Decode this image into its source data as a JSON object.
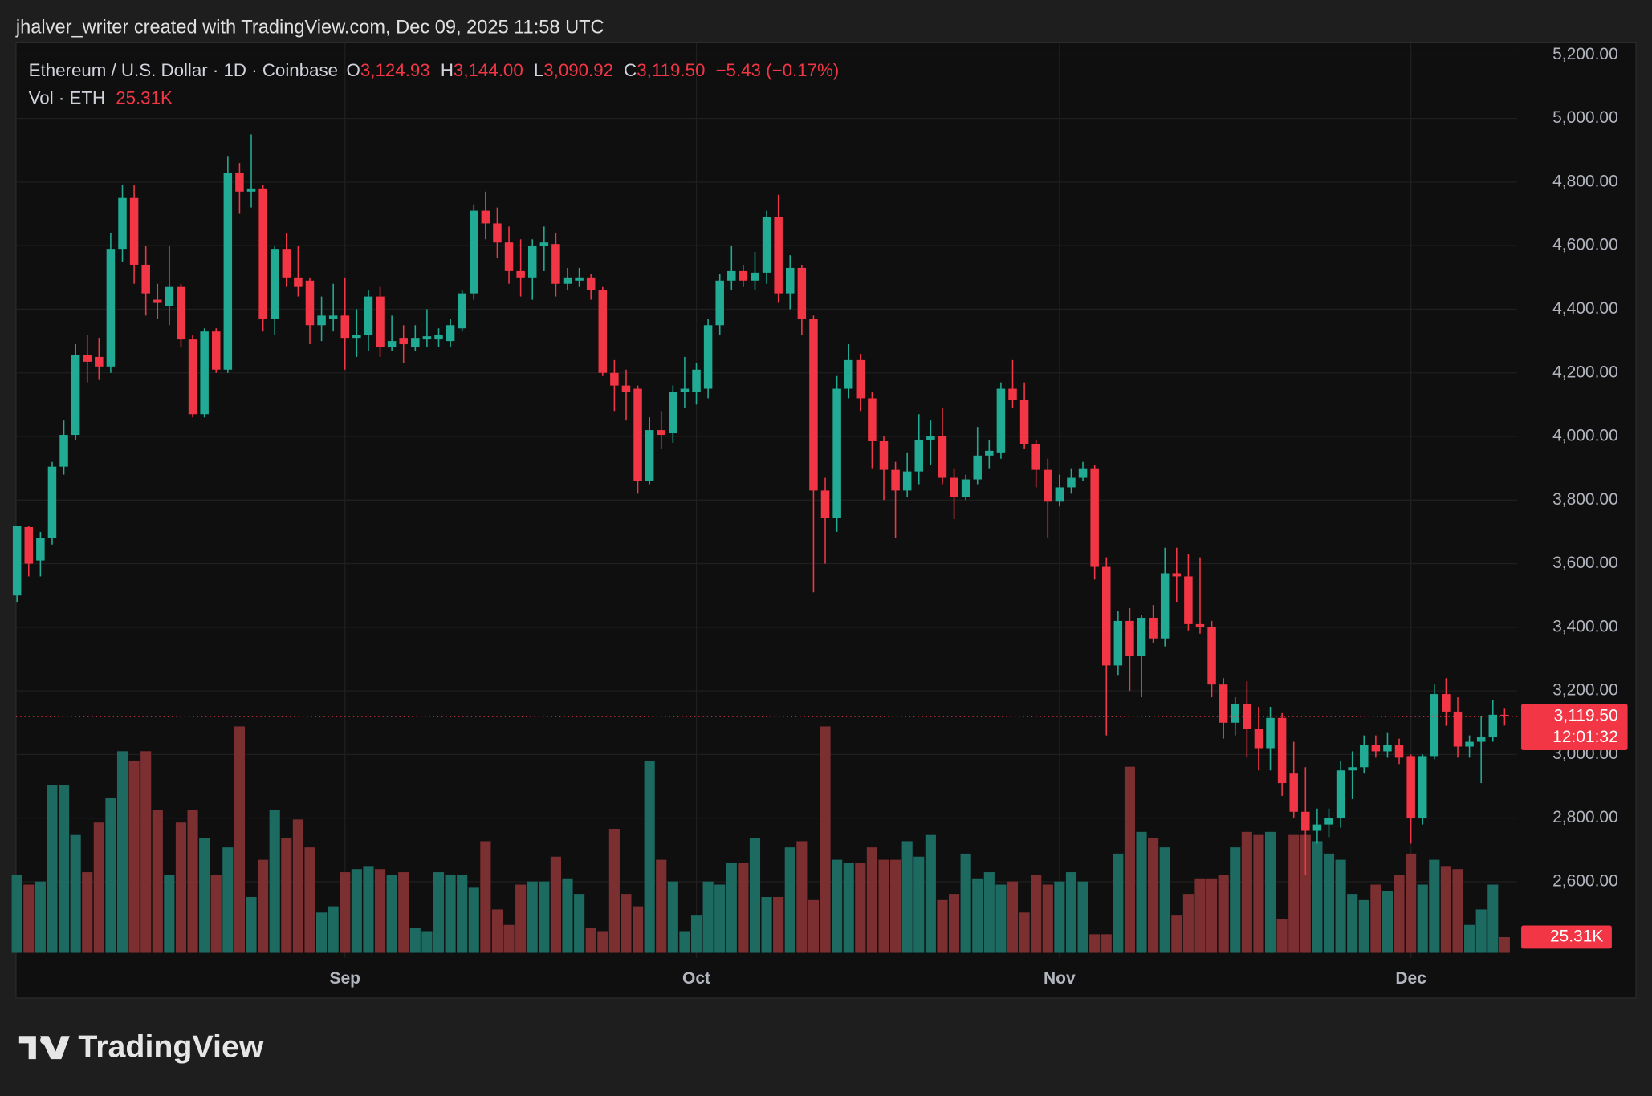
{
  "attribution": "jhalver_writer created with TradingView.com, Dec 09, 2025 11:58 UTC",
  "brand": "TradingView",
  "chart_data": {
    "type": "candlestick",
    "title": "Ethereum / U.S. Dollar · 1D · Coinbase",
    "ohlc_legend": [
      {
        "key": "O",
        "value": "3,124.93"
      },
      {
        "key": "H",
        "value": "3,144.00"
      },
      {
        "key": "L",
        "value": "3,090.92"
      },
      {
        "key": "C",
        "value": "3,119.50"
      }
    ],
    "change_label": "−5.43 (−0.17%)",
    "volume_title": "Vol · ETH",
    "volume_label": "25.31K",
    "last_price_label": "3,119.50",
    "countdown": "12:01:32",
    "up_color": "#22ab94",
    "down_color": "#f23645",
    "up_volume_color": "#1d6a61",
    "down_volume_color": "#7c2f31",
    "grid": true,
    "ylim": [
      2360,
      5240
    ],
    "yticks": [
      {
        "value": 2600,
        "label": "2,600.00"
      },
      {
        "value": 2800,
        "label": "2,800.00"
      },
      {
        "value": 3000,
        "label": "3,000.00"
      },
      {
        "value": 3200,
        "label": "3,200.00"
      },
      {
        "value": 3400,
        "label": "3,400.00"
      },
      {
        "value": 3600,
        "label": "3,600.00"
      },
      {
        "value": 3800,
        "label": "3,800.00"
      },
      {
        "value": 4000,
        "label": "4,000.00"
      },
      {
        "value": 4200,
        "label": "4,200.00"
      },
      {
        "value": 4400,
        "label": "4,400.00"
      },
      {
        "value": 4600,
        "label": "4,600.00"
      },
      {
        "value": 4800,
        "label": "4,800.00"
      },
      {
        "value": 5000,
        "label": "5,000.00"
      },
      {
        "value": 5200,
        "label": "5,200.00"
      }
    ],
    "xticks": [
      {
        "value": 28,
        "label": "Sep"
      },
      {
        "value": 58,
        "label": "Oct"
      },
      {
        "value": 89,
        "label": "Nov"
      },
      {
        "value": 119,
        "label": "Dec"
      }
    ],
    "ohlc": [
      [
        3500,
        3720,
        3480,
        3720
      ],
      [
        3715,
        3720,
        3560,
        3600
      ],
      [
        3610,
        3700,
        3560,
        3680
      ],
      [
        3680,
        3920,
        3660,
        3905
      ],
      [
        3905,
        4050,
        3880,
        4005
      ],
      [
        4005,
        4290,
        3990,
        4255
      ],
      [
        4255,
        4320,
        4170,
        4235
      ],
      [
        4250,
        4310,
        4180,
        4220
      ],
      [
        4220,
        4640,
        4200,
        4590
      ],
      [
        4590,
        4790,
        4550,
        4750
      ],
      [
        4750,
        4790,
        4480,
        4540
      ],
      [
        4540,
        4600,
        4380,
        4450
      ],
      [
        4430,
        4480,
        4370,
        4420
      ],
      [
        4410,
        4600,
        4350,
        4470
      ],
      [
        4470,
        4480,
        4280,
        4305
      ],
      [
        4305,
        4320,
        4060,
        4070
      ],
      [
        4070,
        4340,
        4060,
        4330
      ],
      [
        4330,
        4340,
        4200,
        4210
      ],
      [
        4210,
        4880,
        4200,
        4830
      ],
      [
        4830,
        4860,
        4700,
        4770
      ],
      [
        4770,
        4950,
        4720,
        4780
      ],
      [
        4780,
        4790,
        4330,
        4370
      ],
      [
        4370,
        4600,
        4320,
        4590
      ],
      [
        4590,
        4640,
        4470,
        4500
      ],
      [
        4500,
        4600,
        4440,
        4470
      ],
      [
        4490,
        4500,
        4290,
        4350
      ],
      [
        4350,
        4440,
        4300,
        4380
      ],
      [
        4370,
        4480,
        4330,
        4380
      ],
      [
        4380,
        4500,
        4210,
        4310
      ],
      [
        4310,
        4400,
        4250,
        4320
      ],
      [
        4320,
        4460,
        4270,
        4440
      ],
      [
        4440,
        4470,
        4250,
        4280
      ],
      [
        4280,
        4380,
        4270,
        4300
      ],
      [
        4310,
        4350,
        4230,
        4290
      ],
      [
        4280,
        4350,
        4270,
        4310
      ],
      [
        4305,
        4400,
        4280,
        4315
      ],
      [
        4305,
        4340,
        4280,
        4320
      ],
      [
        4300,
        4370,
        4280,
        4350
      ],
      [
        4340,
        4460,
        4330,
        4450
      ],
      [
        4450,
        4730,
        4430,
        4710
      ],
      [
        4710,
        4770,
        4620,
        4670
      ],
      [
        4670,
        4720,
        4560,
        4610
      ],
      [
        4610,
        4660,
        4480,
        4520
      ],
      [
        4520,
        4620,
        4440,
        4500
      ],
      [
        4500,
        4620,
        4430,
        4600
      ],
      [
        4600,
        4660,
        4520,
        4610
      ],
      [
        4605,
        4640,
        4440,
        4480
      ],
      [
        4480,
        4530,
        4460,
        4500
      ],
      [
        4490,
        4530,
        4470,
        4500
      ],
      [
        4500,
        4510,
        4430,
        4460
      ],
      [
        4460,
        4470,
        4190,
        4200
      ],
      [
        4200,
        4240,
        4080,
        4160
      ],
      [
        4160,
        4210,
        4050,
        4140
      ],
      [
        4150,
        4160,
        3820,
        3860
      ],
      [
        3860,
        4060,
        3850,
        4020
      ],
      [
        4020,
        4080,
        3960,
        4005
      ],
      [
        4010,
        4160,
        3980,
        4140
      ],
      [
        4140,
        4250,
        4090,
        4150
      ],
      [
        4140,
        4230,
        4100,
        4210
      ],
      [
        4150,
        4370,
        4120,
        4350
      ],
      [
        4350,
        4510,
        4320,
        4490
      ],
      [
        4490,
        4600,
        4460,
        4520
      ],
      [
        4520,
        4540,
        4470,
        4490
      ],
      [
        4490,
        4580,
        4460,
        4515
      ],
      [
        4515,
        4710,
        4480,
        4690
      ],
      [
        4690,
        4760,
        4420,
        4450
      ],
      [
        4450,
        4570,
        4400,
        4530
      ],
      [
        4530,
        4540,
        4320,
        4370
      ],
      [
        4370,
        4380,
        3510,
        3830
      ],
      [
        3830,
        3870,
        3600,
        3745
      ],
      [
        3745,
        4190,
        3700,
        4150
      ],
      [
        4150,
        4290,
        4120,
        4240
      ],
      [
        4240,
        4260,
        4080,
        4120
      ],
      [
        4120,
        4140,
        3900,
        3985
      ],
      [
        3985,
        4000,
        3800,
        3895
      ],
      [
        3895,
        3920,
        3680,
        3830
      ],
      [
        3830,
        3950,
        3810,
        3890
      ],
      [
        3890,
        4070,
        3850,
        3990
      ],
      [
        3990,
        4050,
        3910,
        4000
      ],
      [
        4000,
        4090,
        3850,
        3870
      ],
      [
        3870,
        3900,
        3740,
        3810
      ],
      [
        3810,
        3880,
        3800,
        3865
      ],
      [
        3865,
        4030,
        3850,
        3940
      ],
      [
        3940,
        3990,
        3900,
        3955
      ],
      [
        3950,
        4170,
        3930,
        4150
      ],
      [
        4150,
        4240,
        4090,
        4115
      ],
      [
        4115,
        4170,
        3960,
        3975
      ],
      [
        3975,
        3990,
        3840,
        3895
      ],
      [
        3895,
        3930,
        3680,
        3795
      ],
      [
        3795,
        3880,
        3780,
        3840
      ],
      [
        3840,
        3900,
        3820,
        3870
      ],
      [
        3870,
        3920,
        3860,
        3900
      ],
      [
        3900,
        3910,
        3550,
        3590
      ],
      [
        3590,
        3620,
        3060,
        3280
      ],
      [
        3280,
        3450,
        3250,
        3420
      ],
      [
        3420,
        3460,
        3200,
        3310
      ],
      [
        3310,
        3440,
        3180,
        3430
      ],
      [
        3430,
        3470,
        3350,
        3365
      ],
      [
        3365,
        3650,
        3340,
        3570
      ],
      [
        3570,
        3650,
        3480,
        3560
      ],
      [
        3560,
        3630,
        3390,
        3410
      ],
      [
        3410,
        3620,
        3380,
        3400
      ],
      [
        3400,
        3420,
        3180,
        3220
      ],
      [
        3220,
        3240,
        3050,
        3100
      ],
      [
        3100,
        3180,
        3060,
        3160
      ],
      [
        3160,
        3230,
        2990,
        3080
      ],
      [
        3080,
        3150,
        2950,
        3020
      ],
      [
        3020,
        3150,
        2950,
        3115
      ],
      [
        3115,
        3130,
        2870,
        2910
      ],
      [
        2940,
        3040,
        2800,
        2820
      ],
      [
        2820,
        2960,
        2620,
        2760
      ],
      [
        2760,
        2830,
        2720,
        2780
      ],
      [
        2780,
        2830,
        2740,
        2800
      ],
      [
        2800,
        2980,
        2770,
        2950
      ],
      [
        2950,
        3010,
        2860,
        2960
      ],
      [
        2960,
        3060,
        2940,
        3030
      ],
      [
        3030,
        3060,
        2990,
        3010
      ],
      [
        3010,
        3070,
        2990,
        3030
      ],
      [
        3030,
        3050,
        2970,
        2990
      ],
      [
        2995,
        3000,
        2720,
        2800
      ],
      [
        2800,
        3000,
        2780,
        2995
      ],
      [
        2995,
        3220,
        2985,
        3190
      ],
      [
        3190,
        3240,
        3090,
        3135
      ],
      [
        3135,
        3180,
        2990,
        3025
      ],
      [
        3025,
        3060,
        2990,
        3040
      ],
      [
        3040,
        3120,
        2910,
        3055
      ],
      [
        3055,
        3170,
        3040,
        3125
      ],
      [
        3124.93,
        3144,
        3090.92,
        3119.5
      ]
    ],
    "volumes": [
      125,
      110,
      115,
      270,
      270,
      190,
      130,
      210,
      250,
      325,
      310,
      325,
      230,
      125,
      210,
      230,
      185,
      125,
      170,
      365,
      90,
      150,
      230,
      185,
      215,
      170,
      65,
      75,
      130,
      135,
      140,
      135,
      125,
      130,
      40,
      35,
      130,
      125,
      125,
      105,
      180,
      70,
      45,
      110,
      115,
      115,
      155,
      120,
      95,
      40,
      35,
      200,
      95,
      75,
      310,
      150,
      115,
      35,
      60,
      115,
      110,
      145,
      145,
      185,
      90,
      90,
      170,
      180,
      85,
      365,
      150,
      145,
      145,
      170,
      150,
      150,
      180,
      155,
      190,
      85,
      95,
      160,
      120,
      130,
      110,
      115,
      65,
      125,
      110,
      115,
      130,
      115,
      30,
      30,
      160,
      300,
      195,
      185,
      170,
      60,
      95,
      120,
      120,
      125,
      170,
      195,
      190,
      195,
      55,
      190,
      190,
      180,
      160,
      150,
      95,
      85,
      110,
      100,
      125,
      160,
      110,
      150,
      140,
      135,
      45,
      70,
      110,
      25.31
    ]
  }
}
